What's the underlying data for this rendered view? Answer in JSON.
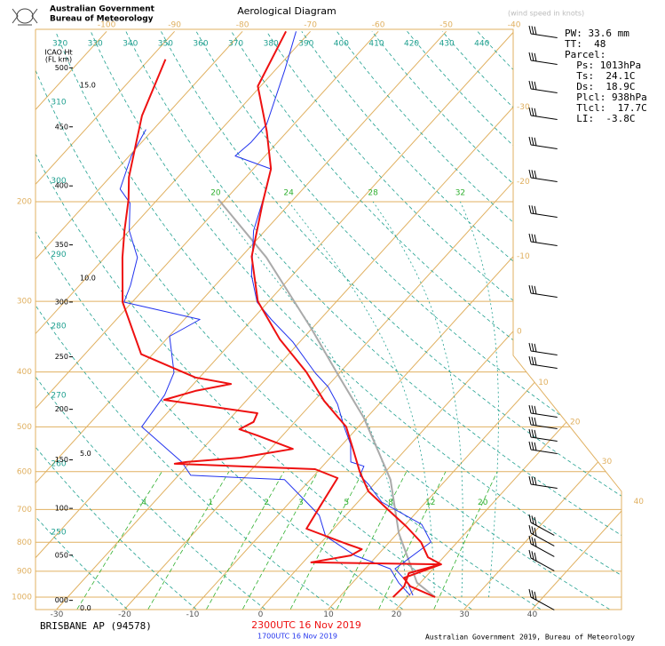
{
  "header": {
    "org_line1": "Australian Government",
    "org_line2": "Bureau of Meteorology",
    "title": "Aerological Diagram",
    "wind_note": "(wind speed in knots)"
  },
  "stats": [
    "PW: 33.6 mm",
    "TT:  48",
    "Parcel:",
    "  Ps: 1013hPa",
    "  Ts:  24.1C",
    "  Ds:  18.9C",
    "  Plcl: 938hPa",
    "  Tlcl:  17.7C",
    "  LI:  -3.8C"
  ],
  "chart_data": {
    "type": "skewt",
    "plim": [
      1050,
      100
    ],
    "isobars": [
      1000,
      900,
      800,
      700,
      600,
      500,
      400,
      300,
      200
    ],
    "xticks": [
      -30,
      -20,
      -10,
      0,
      10,
      20,
      30,
      40
    ],
    "isotherm_top_labels": [
      -100,
      -90,
      -80,
      -70,
      -60,
      -50,
      -40
    ],
    "isotherm_right_labels": [
      -30,
      -20,
      -10,
      0,
      10,
      20,
      30,
      40
    ],
    "dry_adiabats_top": [
      320,
      330,
      340,
      350,
      360,
      370,
      380,
      390,
      400,
      410,
      420,
      430,
      440
    ],
    "dry_adiabats_left": [
      310,
      300,
      290,
      280,
      270,
      260,
      250
    ],
    "mixing_ratios": [
      {
        "value": 0.4,
        "label": ".4"
      },
      1,
      2,
      3,
      5,
      8,
      12,
      20
    ],
    "moist_adiabats": [
      20,
      24,
      28,
      32
    ],
    "height_title": [
      "ICAO Ht",
      "(FL  km)"
    ],
    "flight_levels": [
      500,
      450,
      400,
      350,
      300,
      250,
      200,
      150,
      100,
      {
        "value": 50,
        "label": "050"
      },
      {
        "value": 0,
        "label": "000"
      }
    ],
    "km_levels": [
      {
        "value": 15,
        "label": "15.0"
      },
      {
        "value": 10,
        "label": "10.0"
      },
      {
        "value": 5,
        "label": "5.0"
      },
      {
        "value": 0,
        "label": "0.0"
      }
    ],
    "isotherm_color": "#e0b060",
    "dry_adiabat_color": "#20a090",
    "moist_adiabat_color": "#20a090",
    "mixing_ratio_color": "#30b030",
    "series": [
      {
        "name": "2300UTC 16 Nov 2019",
        "color": "#ee1111",
        "temperature": {
          "pressure": [
            1000,
            957,
            925,
            900,
            875,
            850,
            800,
            750,
            700,
            650,
            600,
            550,
            500,
            450,
            400,
            350,
            300,
            250,
            200,
            175,
            150,
            125,
            100
          ],
          "values": [
            24.1,
            19.0,
            16.9,
            18.7,
            20.6,
            17.7,
            14.7,
            10.4,
            5.4,
            0.1,
            -3.8,
            -7.6,
            -11.8,
            -18.5,
            -25.0,
            -33.3,
            -41.6,
            -48.5,
            -54.2,
            -57.4,
            -63.1,
            -70.4,
            -73.6
          ]
        },
        "dewpoint": {
          "pressure": [
            1000,
            957,
            907,
            875,
            868,
            844,
            823,
            805,
            757,
            691,
            616,
            594,
            581,
            577,
            567,
            547,
            518,
            505,
            490,
            473,
            448,
            432,
            420,
            409,
            372,
            301,
            251,
            225,
            198,
            181,
            157,
            141,
            112
          ],
          "values": [
            17.9,
            18.1,
            17.0,
            20.5,
            1.2,
            6.1,
            6.9,
            3.9,
            -4.0,
            -5.0,
            -6.2,
            -10.7,
            -32.1,
            -30.6,
            -23.3,
            -16.7,
            -23.7,
            -27.2,
            -26.1,
            -26.7,
            -42.2,
            -38.8,
            -34.5,
            -40.6,
            -51.7,
            -61.4,
            -67.4,
            -70.7,
            -74.3,
            -77.2,
            -80.8,
            -83.5,
            -87.6
          ]
        }
      },
      {
        "name": "1700UTC 16 Nov 2019",
        "color": "#2233ee",
        "temperature": {
          "pressure": [
            993,
            943,
            891,
            799,
            744,
            679,
            632,
            609,
            587,
            577,
            537,
            500,
            456,
            425,
            402,
            354,
            323,
            301,
            270,
            225,
            189,
            175,
            166,
            157,
            146,
            117,
            100
          ],
          "values": [
            20.6,
            18.1,
            14.4,
            16.1,
            12.4,
            3.5,
            -0.8,
            -3.3,
            -3.9,
            -6.4,
            -8.8,
            -12.1,
            -16.1,
            -19.8,
            -23.5,
            -31.0,
            -37.2,
            -41.6,
            -46.0,
            -51.7,
            -55.5,
            -57.4,
            -64.4,
            -63.9,
            -64.0,
            -68.6,
            -72.1
          ]
        },
        "dewpoint": {
          "pressure": [
            993,
            943,
            891,
            844,
            780,
            717,
            667,
            620,
            609,
            577,
            500,
            439,
            401,
            346,
            323,
            301,
            281,
            251,
            225,
            201,
            190,
            166,
            149
          ],
          "values": [
            20.2,
            16.8,
            13.7,
            6.7,
            -0.2,
            -3.9,
            -8.8,
            -13.8,
            -28.2,
            -31.3,
            -41.9,
            -42.8,
            -44.4,
            -49.9,
            -47.7,
            -61.2,
            -62.5,
            -65.2,
            -70.0,
            -73.6,
            -76.9,
            -79.7,
            -81.1
          ]
        }
      }
    ],
    "parcel": {
      "color": "#aaaaaa",
      "pressure": [
        1000,
        943,
        771,
        620,
        482,
        402,
        335,
        251,
        198
      ],
      "values": [
        24.1,
        19.5,
        10.2,
        1.8,
        -10.4,
        -20.3,
        -30.1,
        -46.2,
        -61.1
      ]
    },
    "station": "BRISBANE AP (94578)",
    "footer": "Australian Government 2019, Bureau of Meteorology"
  }
}
